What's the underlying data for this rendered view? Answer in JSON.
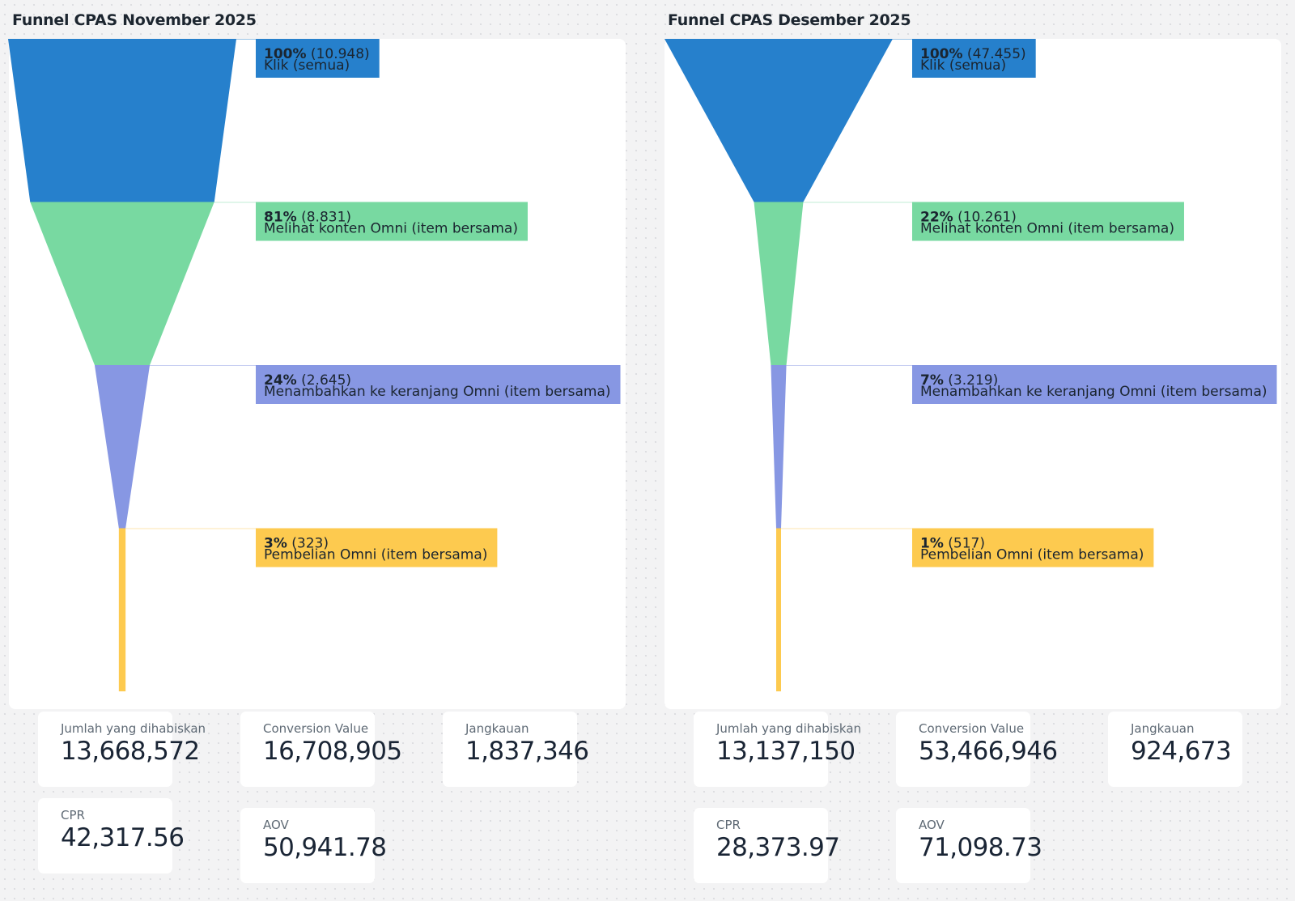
{
  "chart_data": [
    {
      "type": "funnel",
      "title": "Funnel CPAS November 2025",
      "stages": [
        {
          "percent_label": "100%",
          "value": 10948,
          "value_label": "(10.948)",
          "name": "Klik (semua)",
          "color": "#2680cc"
        },
        {
          "percent_label": "81%",
          "value": 8831,
          "value_label": "(8.831)",
          "name": "Melihat konten Omni (item bersama)",
          "color": "#78d9a1"
        },
        {
          "percent_label": "24%",
          "value": 2645,
          "value_label": "(2.645)",
          "name": "Menambahkan ke keranjang Omni (item bersama)",
          "color": "#8797e3"
        },
        {
          "percent_label": "3%",
          "value": 323,
          "value_label": "(323)",
          "name": "Pembelian Omni (item bersama)",
          "color": "#fdca4f"
        }
      ]
    },
    {
      "type": "funnel",
      "title": "Funnel CPAS Desember 2025",
      "stages": [
        {
          "percent_label": "100%",
          "value": 47455,
          "value_label": "(47.455)",
          "name": "Klik (semua)",
          "color": "#2680cc"
        },
        {
          "percent_label": "22%",
          "value": 10261,
          "value_label": "(10.261)",
          "name": "Melihat konten Omni (item bersama)",
          "color": "#78d9a1"
        },
        {
          "percent_label": "7%",
          "value": 3219,
          "value_label": "(3.219)",
          "name": "Menambahkan ke keranjang Omni (item bersama)",
          "color": "#8797e3"
        },
        {
          "percent_label": "1%",
          "value": 517,
          "value_label": "(517)",
          "name": "Pembelian Omni (item bersama)",
          "color": "#fdca4f"
        }
      ]
    }
  ],
  "metrics": {
    "november": {
      "spend": {
        "label": "Jumlah yang dihabiskan",
        "value": "13,668,572"
      },
      "conversion_value": {
        "label": "Conversion Value",
        "value": "16,708,905"
      },
      "reach": {
        "label": "Jangkauan",
        "value": "1,837,346"
      },
      "cpr": {
        "label": "CPR",
        "value": "42,317.56"
      },
      "aov": {
        "label": "AOV",
        "value": "50,941.78"
      }
    },
    "december": {
      "spend": {
        "label": "Jumlah yang dihabiskan",
        "value": "13,137,150"
      },
      "conversion_value": {
        "label": "Conversion Value",
        "value": "53,466,946"
      },
      "reach": {
        "label": "Jangkauan",
        "value": "924,673"
      },
      "cpr": {
        "label": "CPR",
        "value": "28,373.97"
      },
      "aov": {
        "label": "AOV",
        "value": "71,098.73"
      }
    }
  }
}
